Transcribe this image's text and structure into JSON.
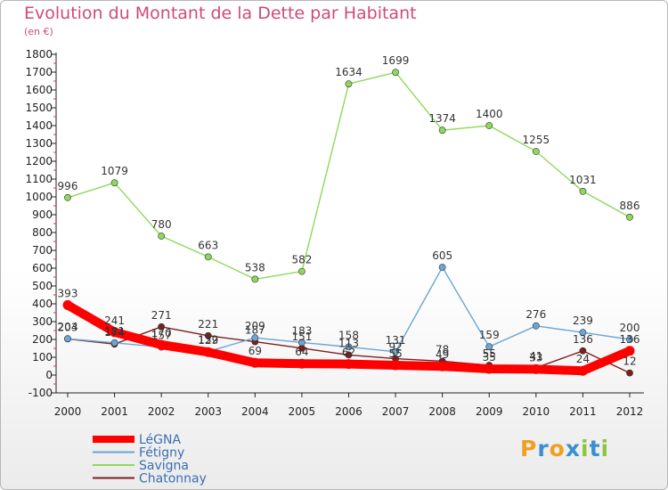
{
  "chart_data": {
    "type": "line",
    "title": "Evolution du Montant de la Dette par Habitant",
    "unit_label": "(en €)",
    "x": [
      2000,
      2001,
      2002,
      2003,
      2004,
      2005,
      2006,
      2007,
      2008,
      2009,
      2010,
      2011,
      2012
    ],
    "ylim": [
      -100,
      1800
    ],
    "yticks": [
      -100,
      0,
      100,
      200,
      300,
      400,
      500,
      600,
      700,
      800,
      900,
      1000,
      1100,
      1200,
      1300,
      1400,
      1500,
      1600,
      1700,
      1800
    ],
    "grid": false,
    "legend_position": "bottom-left",
    "series": [
      {
        "name": "Savigna",
        "color": "#8ed95b",
        "values": [
          996,
          1079,
          780,
          663,
          538,
          582,
          1634,
          1699,
          1374,
          1400,
          1255,
          1031,
          886
        ]
      },
      {
        "name": "Chatonnay",
        "color": "#7d1f1f",
        "values": [
          203,
          174,
          271,
          221,
          187,
          151,
          113,
          92,
          78,
          55,
          41,
          136,
          12
        ]
      },
      {
        "name": "Fétigny",
        "color": "#6aa6d6",
        "values": [
          204,
          181,
          157,
          132,
          209,
          183,
          158,
          131,
          605,
          159,
          276,
          239,
          200
        ]
      },
      {
        "name": "LéGNA",
        "color": "#ff0000",
        "values": [
          393,
          241,
          170,
          129,
          69,
          64,
          62,
          55,
          49,
          35,
          33,
          24,
          136
        ]
      }
    ]
  },
  "logo": {
    "letters": [
      "P",
      "r",
      "o",
      "x",
      "i",
      "t",
      "i"
    ],
    "colors": [
      "#f0a020",
      "#3a8fd0",
      "#f0a020",
      "#3a8fd0",
      "#8cc63f",
      "#3a8fd0",
      "#8cc63f"
    ]
  }
}
